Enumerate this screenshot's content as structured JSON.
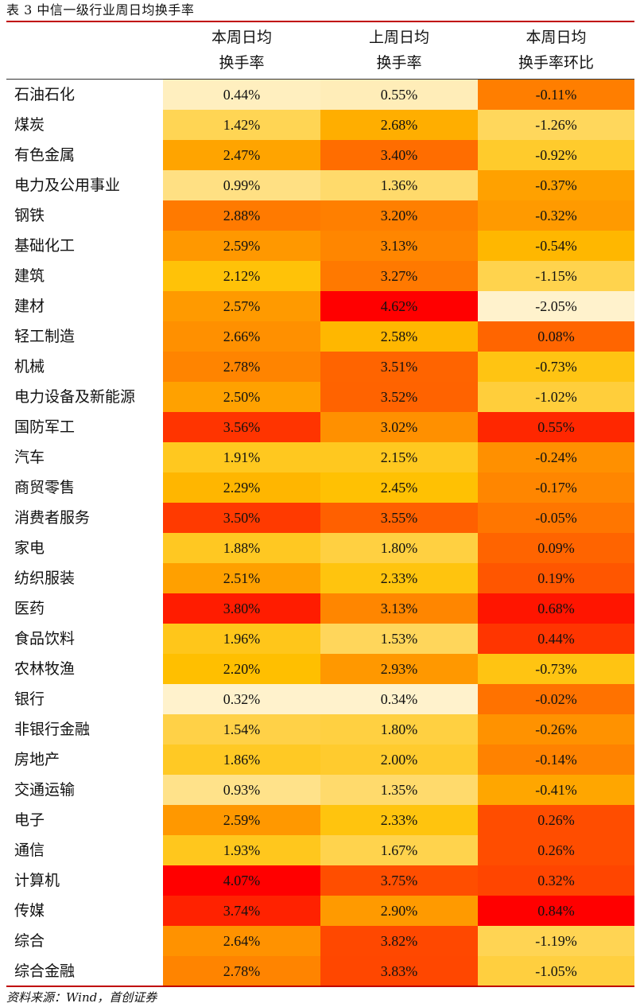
{
  "caption": "表 3  中信一级行业周日均换手率",
  "headers": {
    "col1_line1": "本周日均",
    "col1_line2": "换手率",
    "col2_line1": "上周日均",
    "col2_line2": "换手率",
    "col3_line1": "本周日均",
    "col3_line2": "换手率环比"
  },
  "rows": [
    {
      "name": "石油石化",
      "this_week": "0.44%",
      "last_week": "0.55%",
      "change": "-0.11%"
    },
    {
      "name": "煤炭",
      "this_week": "1.42%",
      "last_week": "2.68%",
      "change": "-1.26%"
    },
    {
      "name": "有色金属",
      "this_week": "2.47%",
      "last_week": "3.40%",
      "change": "-0.92%"
    },
    {
      "name": "电力及公用事业",
      "this_week": "0.99%",
      "last_week": "1.36%",
      "change": "-0.37%"
    },
    {
      "name": "钢铁",
      "this_week": "2.88%",
      "last_week": "3.20%",
      "change": "-0.32%"
    },
    {
      "name": "基础化工",
      "this_week": "2.59%",
      "last_week": "3.13%",
      "change": "-0.54%"
    },
    {
      "name": "建筑",
      "this_week": "2.12%",
      "last_week": "3.27%",
      "change": "-1.15%"
    },
    {
      "name": "建材",
      "this_week": "2.57%",
      "last_week": "4.62%",
      "change": "-2.05%"
    },
    {
      "name": "轻工制造",
      "this_week": "2.66%",
      "last_week": "2.58%",
      "change": "0.08%"
    },
    {
      "name": "机械",
      "this_week": "2.78%",
      "last_week": "3.51%",
      "change": "-0.73%"
    },
    {
      "name": "电力设备及新能源",
      "this_week": "2.50%",
      "last_week": "3.52%",
      "change": "-1.02%"
    },
    {
      "name": "国防军工",
      "this_week": "3.56%",
      "last_week": "3.02%",
      "change": "0.55%"
    },
    {
      "name": "汽车",
      "this_week": "1.91%",
      "last_week": "2.15%",
      "change": "-0.24%"
    },
    {
      "name": "商贸零售",
      "this_week": "2.29%",
      "last_week": "2.45%",
      "change": "-0.17%"
    },
    {
      "name": "消费者服务",
      "this_week": "3.50%",
      "last_week": "3.55%",
      "change": "-0.05%"
    },
    {
      "name": "家电",
      "this_week": "1.88%",
      "last_week": "1.80%",
      "change": "0.09%"
    },
    {
      "name": "纺织服装",
      "this_week": "2.51%",
      "last_week": "2.33%",
      "change": "0.19%"
    },
    {
      "name": "医药",
      "this_week": "3.80%",
      "last_week": "3.13%",
      "change": "0.68%"
    },
    {
      "name": "食品饮料",
      "this_week": "1.96%",
      "last_week": "1.53%",
      "change": "0.44%"
    },
    {
      "name": "农林牧渔",
      "this_week": "2.20%",
      "last_week": "2.93%",
      "change": "-0.73%"
    },
    {
      "name": "银行",
      "this_week": "0.32%",
      "last_week": "0.34%",
      "change": "-0.02%"
    },
    {
      "name": "非银行金融",
      "this_week": "1.54%",
      "last_week": "1.80%",
      "change": "-0.26%"
    },
    {
      "name": "房地产",
      "this_week": "1.86%",
      "last_week": "2.00%",
      "change": "-0.14%"
    },
    {
      "name": "交通运输",
      "this_week": "0.93%",
      "last_week": "1.35%",
      "change": "-0.41%"
    },
    {
      "name": "电子",
      "this_week": "2.59%",
      "last_week": "2.33%",
      "change": "0.26%"
    },
    {
      "name": "通信",
      "this_week": "1.93%",
      "last_week": "1.67%",
      "change": "0.26%"
    },
    {
      "name": "计算机",
      "this_week": "4.07%",
      "last_week": "3.75%",
      "change": "0.32%"
    },
    {
      "name": "传媒",
      "this_week": "3.74%",
      "last_week": "2.90%",
      "change": "0.84%"
    },
    {
      "name": "综合",
      "this_week": "2.64%",
      "last_week": "3.82%",
      "change": "-1.19%"
    },
    {
      "name": "综合金融",
      "this_week": "2.78%",
      "last_week": "3.83%",
      "change": "-1.05%"
    }
  ],
  "source": "资料来源：Wind，首创证券",
  "colors": {
    "accent_rule": "#c00000",
    "heat_low": "#fff2cc",
    "heat_mid": "#ffc000",
    "heat_high": "#ff0000"
  }
}
